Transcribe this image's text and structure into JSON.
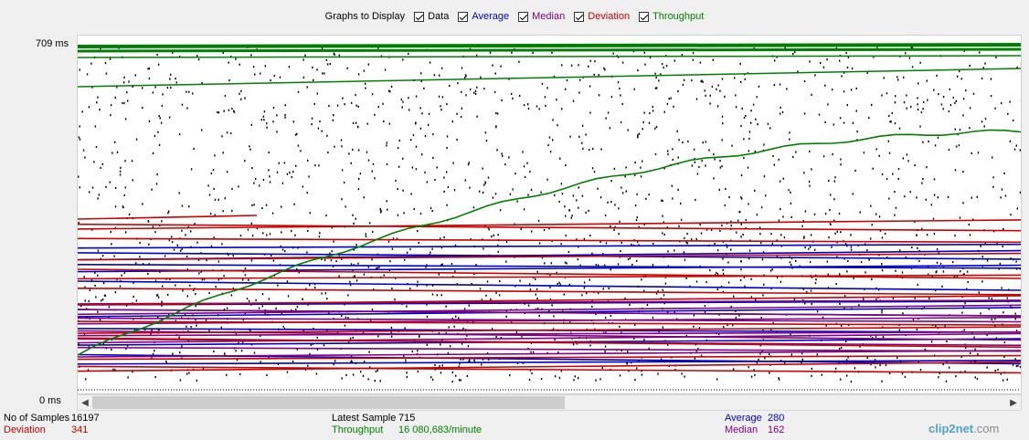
{
  "controls": {
    "label": "Graphs to Display",
    "checkboxes": [
      {
        "key": "data",
        "label": "Data",
        "checked": true,
        "color": "#000000"
      },
      {
        "key": "average",
        "label": "Average",
        "checked": true,
        "color": "#0000cc"
      },
      {
        "key": "median",
        "label": "Median",
        "checked": true,
        "color": "#800080"
      },
      {
        "key": "deviation",
        "label": "Deviation",
        "checked": true,
        "color": "#cc0000"
      },
      {
        "key": "throughput",
        "label": "Throughput",
        "checked": true,
        "color": "#008000"
      }
    ]
  },
  "axis": {
    "y_max_label": "709  ms",
    "y_min_label": "0  ms"
  },
  "stats": {
    "samples_label": "No of Samples",
    "samples_value": "16197",
    "deviation_label": "Deviation",
    "deviation_value": "341",
    "latest_label": "Latest Sample",
    "latest_value": "715",
    "throughput_label": "Throughput",
    "throughput_value": "16 080,683/minute",
    "average_label": "Average",
    "average_value": "280",
    "median_label": "Median",
    "median_value": "162"
  },
  "logo": {
    "text": "clip2net",
    "suffix": ".com"
  },
  "chart_data": {
    "type": "scatter",
    "ylim": [
      0,
      709
    ],
    "series": [
      {
        "name": "Data",
        "color": "#000000"
      },
      {
        "name": "Average",
        "color": "#0000cc",
        "levels": [
          280,
          270,
          255,
          245,
          230,
          210,
          160,
          150,
          135,
          110,
          75,
          55,
          35
        ]
      },
      {
        "name": "Median",
        "color": "#800080",
        "levels": [
          162,
          150,
          140,
          132,
          120,
          105,
          95,
          88,
          80,
          70,
          50
        ]
      },
      {
        "name": "Deviation",
        "color": "#cc0000",
        "levels": [
          341,
          330,
          320,
          300,
          255,
          235,
          215,
          195,
          160,
          125,
          100,
          90,
          45,
          30,
          20
        ]
      },
      {
        "name": "Throughput",
        "color": "#008000"
      }
    ]
  }
}
